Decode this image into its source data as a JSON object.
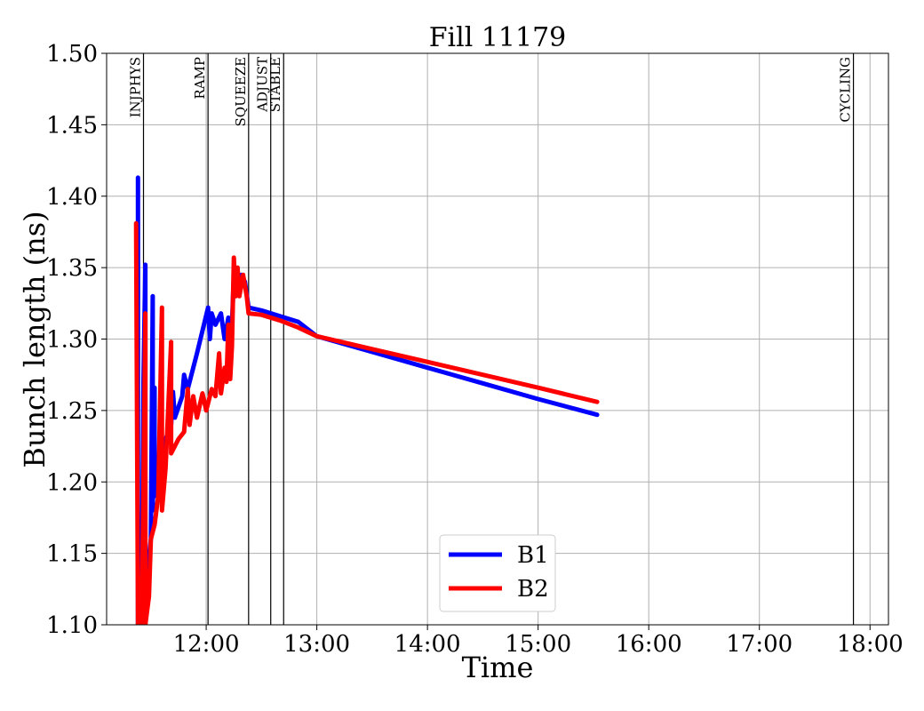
{
  "chart_data": {
    "type": "line",
    "title": "Fill 11179",
    "xlabel": "Time",
    "ylabel": "Bunch length (ns)",
    "grid": true,
    "legend_position": "bottom-center",
    "xlim": [
      "11:06",
      "18:10"
    ],
    "ylim": [
      1.1,
      1.5
    ],
    "x_ticks": [
      "12:00",
      "13:00",
      "14:00",
      "15:00",
      "16:00",
      "17:00",
      "18:00"
    ],
    "y_ticks": [
      "1.10",
      "1.15",
      "1.20",
      "1.25",
      "1.30",
      "1.35",
      "1.40",
      "1.45",
      "1.50"
    ],
    "phases": [
      {
        "label": "INJPHYS",
        "time": "11:26"
      },
      {
        "label": "RAMP",
        "time": "12:01"
      },
      {
        "label": "SQUEEZE",
        "time": "12:23"
      },
      {
        "label": "ADJUST",
        "time": "12:35"
      },
      {
        "label": "STABLE",
        "time": "12:42"
      },
      {
        "label": "CYCLING",
        "time": "17:51"
      }
    ],
    "series": [
      {
        "name": "B1",
        "color": "#0000ff",
        "points": [
          [
            "11:23",
            1.413
          ],
          [
            "11:23",
            1.1
          ],
          [
            "11:25",
            1.1
          ],
          [
            "11:26",
            1.27
          ],
          [
            "11:27",
            1.352
          ],
          [
            "11:27",
            1.12
          ],
          [
            "11:30",
            1.16
          ],
          [
            "11:31",
            1.33
          ],
          [
            "11:31",
            1.18
          ],
          [
            "11:32",
            1.266
          ],
          [
            "11:32",
            1.19
          ],
          [
            "11:35",
            1.21
          ],
          [
            "11:38",
            1.23
          ],
          [
            "11:41",
            1.24
          ],
          [
            "11:42",
            1.263
          ],
          [
            "11:43",
            1.245
          ],
          [
            "11:47",
            1.26
          ],
          [
            "11:48",
            1.275
          ],
          [
            "11:50",
            1.265
          ],
          [
            "11:55",
            1.29
          ],
          [
            "12:01",
            1.322
          ],
          [
            "12:02",
            1.3
          ],
          [
            "12:03",
            1.318
          ],
          [
            "12:05",
            1.31
          ],
          [
            "12:08",
            1.318
          ],
          [
            "12:10",
            1.3
          ],
          [
            "12:12",
            1.315
          ],
          [
            "12:14",
            1.31
          ],
          [
            "12:15",
            1.345
          ],
          [
            "12:17",
            1.335
          ],
          [
            "12:19",
            1.345
          ],
          [
            "12:21",
            1.34
          ],
          [
            "12:23",
            1.322
          ],
          [
            "12:30",
            1.32
          ],
          [
            "12:40",
            1.316
          ],
          [
            "12:50",
            1.312
          ],
          [
            "13:00",
            1.302
          ],
          [
            "13:30",
            1.291
          ],
          [
            "14:00",
            1.28
          ],
          [
            "14:30",
            1.269
          ],
          [
            "15:00",
            1.258
          ],
          [
            "15:32",
            1.247
          ]
        ]
      },
      {
        "name": "B2",
        "color": "#ff0000",
        "points": [
          [
            "11:22",
            1.381
          ],
          [
            "11:23",
            1.1
          ],
          [
            "11:25",
            1.1
          ],
          [
            "11:26",
            1.2
          ],
          [
            "11:27",
            1.318
          ],
          [
            "11:27",
            1.1
          ],
          [
            "11:29",
            1.12
          ],
          [
            "11:30",
            1.16
          ],
          [
            "11:32",
            1.17
          ],
          [
            "11:34",
            1.19
          ],
          [
            "11:36",
            1.322
          ],
          [
            "11:36",
            1.18
          ],
          [
            "11:38",
            1.21
          ],
          [
            "11:41",
            1.298
          ],
          [
            "11:41",
            1.22
          ],
          [
            "11:45",
            1.23
          ],
          [
            "11:48",
            1.235
          ],
          [
            "11:50",
            1.265
          ],
          [
            "11:51",
            1.24
          ],
          [
            "11:53",
            1.26
          ],
          [
            "11:55",
            1.245
          ],
          [
            "11:58",
            1.262
          ],
          [
            "12:00",
            1.25
          ],
          [
            "12:03",
            1.265
          ],
          [
            "12:05",
            1.26
          ],
          [
            "12:07",
            1.29
          ],
          [
            "12:08",
            1.262
          ],
          [
            "12:10",
            1.28
          ],
          [
            "12:11",
            1.27
          ],
          [
            "12:12",
            1.31
          ],
          [
            "12:13",
            1.272
          ],
          [
            "12:14",
            1.295
          ],
          [
            "12:15",
            1.357
          ],
          [
            "12:16",
            1.33
          ],
          [
            "12:17",
            1.35
          ],
          [
            "12:18",
            1.33
          ],
          [
            "12:20",
            1.345
          ],
          [
            "12:22",
            1.33
          ],
          [
            "12:23",
            1.318
          ],
          [
            "12:30",
            1.317
          ],
          [
            "12:40",
            1.313
          ],
          [
            "12:50",
            1.308
          ],
          [
            "13:00",
            1.302
          ],
          [
            "13:30",
            1.293
          ],
          [
            "14:00",
            1.284
          ],
          [
            "14:30",
            1.275
          ],
          [
            "15:00",
            1.266
          ],
          [
            "15:32",
            1.256
          ]
        ]
      }
    ]
  }
}
